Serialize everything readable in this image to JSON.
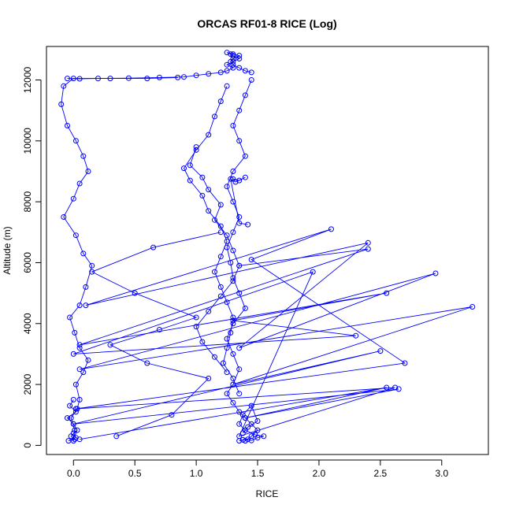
{
  "chart_data": {
    "type": "scatter",
    "title": "ORCAS RF01-8 RICE (Log)",
    "xlabel": "RICE",
    "ylabel": "Altitude (m)",
    "xlim": [
      -0.22,
      3.38
    ],
    "ylim": [
      -300,
      13100
    ],
    "xticks": [
      0,
      0.5,
      1,
      1.5,
      2,
      2.5,
      3
    ],
    "xtick_labels": [
      "0.0",
      "0.5",
      "1.0",
      "1.5",
      "2.0",
      "2.5",
      "3.0"
    ],
    "yticks": [
      0,
      2000,
      4000,
      6000,
      8000,
      10000,
      12000
    ],
    "ytick_labels": [
      "0",
      "2000",
      "4000",
      "6000",
      "8000",
      "10000",
      "12000"
    ],
    "grid": false,
    "legend": "none",
    "series_color": "#0000ff",
    "marker": "open-circle",
    "connected": true,
    "series": [
      {
        "x": [
          0.0,
          0.01,
          -0.02,
          0.03,
          0.05,
          0.02,
          0.08,
          0.12,
          0.05,
          0.01,
          -0.03,
          0.05,
          0.1,
          0.15,
          0.08,
          0.02,
          -0.08,
          0.0,
          0.05,
          0.12,
          0.08,
          0.02,
          -0.05,
          -0.1,
          -0.08,
          0.0,
          0.3,
          0.6,
          0.85
        ],
        "y": [
          150,
          500,
          900,
          1200,
          1500,
          2000,
          2400,
          2800,
          3200,
          3700,
          4200,
          4600,
          5200,
          5900,
          6300,
          6900,
          7500,
          8100,
          8600,
          9000,
          9500,
          10000,
          10500,
          11200,
          11800,
          12050,
          12050,
          12050,
          12080
        ]
      },
      {
        "x": [
          -0.05,
          0.05,
          0.2,
          0.45,
          0.7,
          0.9,
          1.0,
          1.1,
          1.2,
          1.25,
          1.3,
          1.25,
          1.3,
          1.35,
          1.3,
          1.28,
          1.25,
          1.3,
          1.35,
          1.3,
          1.28,
          1.3,
          1.35,
          1.4,
          1.45
        ],
        "y": [
          12050,
          12040,
          12050,
          12060,
          12080,
          12100,
          12150,
          12200,
          12250,
          12300,
          12400,
          12500,
          12600,
          12700,
          12800,
          12850,
          12900,
          12850,
          12800,
          12700,
          12600,
          12500,
          12400,
          12300,
          12250
        ]
      },
      {
        "x": [
          1.45,
          1.4,
          1.35,
          1.3,
          1.35,
          1.4,
          1.3,
          1.25,
          1.3,
          1.35,
          1.3,
          1.25,
          1.28,
          1.3,
          1.35,
          1.4,
          1.3,
          1.25,
          1.3,
          1.35,
          1.3,
          1.25,
          1.3,
          1.35,
          1.4,
          1.45,
          1.5,
          1.45,
          1.4
        ],
        "y": [
          12000,
          11500,
          11000,
          10500,
          10000,
          9500,
          9000,
          8500,
          8000,
          7500,
          7000,
          6500,
          6000,
          5500,
          5000,
          4500,
          4000,
          3500,
          3000,
          2500,
          2000,
          1700,
          1400,
          1100,
          900,
          700,
          500,
          300,
          150
        ]
      },
      {
        "x": [
          1.25,
          1.2,
          1.15,
          1.1,
          1.0,
          0.9,
          0.95,
          1.05,
          1.1,
          1.2,
          1.25,
          1.2,
          1.15,
          1.2,
          1.25,
          1.3,
          1.28,
          1.25,
          1.22,
          1.3,
          1.35
        ],
        "y": [
          11800,
          11300,
          10800,
          10200,
          9700,
          9100,
          8700,
          8200,
          7700,
          7200,
          6700,
          6200,
          5700,
          5200,
          4700,
          4200,
          3700,
          3200,
          2700,
          2200,
          1700
        ]
      },
      {
        "x": [
          0.05,
          2.55,
          1.4,
          2.65,
          0.0,
          2.5,
          1.3,
          3.25,
          0.05,
          2.95,
          1.35,
          2.4,
          0.1,
          2.1,
          1.45,
          2.7,
          0.02,
          2.62,
          1.35,
          1.95,
          0.0,
          2.3,
          1.3,
          2.55,
          0.05,
          2.4,
          1.35
        ],
        "y": [
          200,
          1900,
          900,
          1850,
          700,
          3100,
          2000,
          4550,
          2500,
          5650,
          3200,
          6650,
          4600,
          7100,
          6100,
          2700,
          1200,
          1900,
          300,
          5700,
          3000,
          3600,
          4100,
          5000,
          3300,
          6450,
          5900
        ]
      },
      {
        "x": [
          1.35,
          1.38,
          1.42,
          1.45,
          1.5,
          1.55,
          1.48,
          1.4,
          1.35,
          1.38,
          1.45,
          1.5,
          1.42,
          1.38
        ],
        "y": [
          150,
          180,
          200,
          160,
          250,
          300,
          350,
          500,
          700,
          1000,
          1300,
          800,
          600,
          400
        ]
      },
      {
        "x": [
          0.0,
          -0.03,
          0.02,
          -0.05,
          0.0,
          0.03,
          -0.02,
          0.01,
          -0.04,
          0.02,
          0.0
        ],
        "y": [
          1500,
          1300,
          1100,
          900,
          700,
          500,
          300,
          200,
          150,
          250,
          400
        ]
      },
      {
        "x": [
          1.0,
          0.95,
          1.05,
          1.1,
          1.2,
          1.15,
          1.25,
          1.3,
          1.35,
          1.3,
          1.2,
          1.1,
          1.0,
          1.05,
          1.15,
          1.25
        ],
        "y": [
          9800,
          9200,
          8800,
          8400,
          7900,
          7400,
          6900,
          6400,
          5900,
          5400,
          4900,
          4400,
          3900,
          3400,
          2900,
          2400
        ]
      },
      {
        "x": [
          1.3,
          1.35,
          1.4,
          1.32,
          1.28,
          1.35,
          1.42
        ],
        "y": [
          8750,
          8700,
          8800,
          8650,
          8750,
          7300,
          7250
        ]
      },
      {
        "x": [
          0.35,
          0.8,
          1.1,
          0.6,
          0.3,
          0.7,
          1.0,
          0.5,
          0.15,
          0.65,
          1.2
        ],
        "y": [
          300,
          1000,
          2200,
          2700,
          3300,
          3800,
          4200,
          5000,
          5700,
          6500,
          7000
        ]
      }
    ]
  }
}
